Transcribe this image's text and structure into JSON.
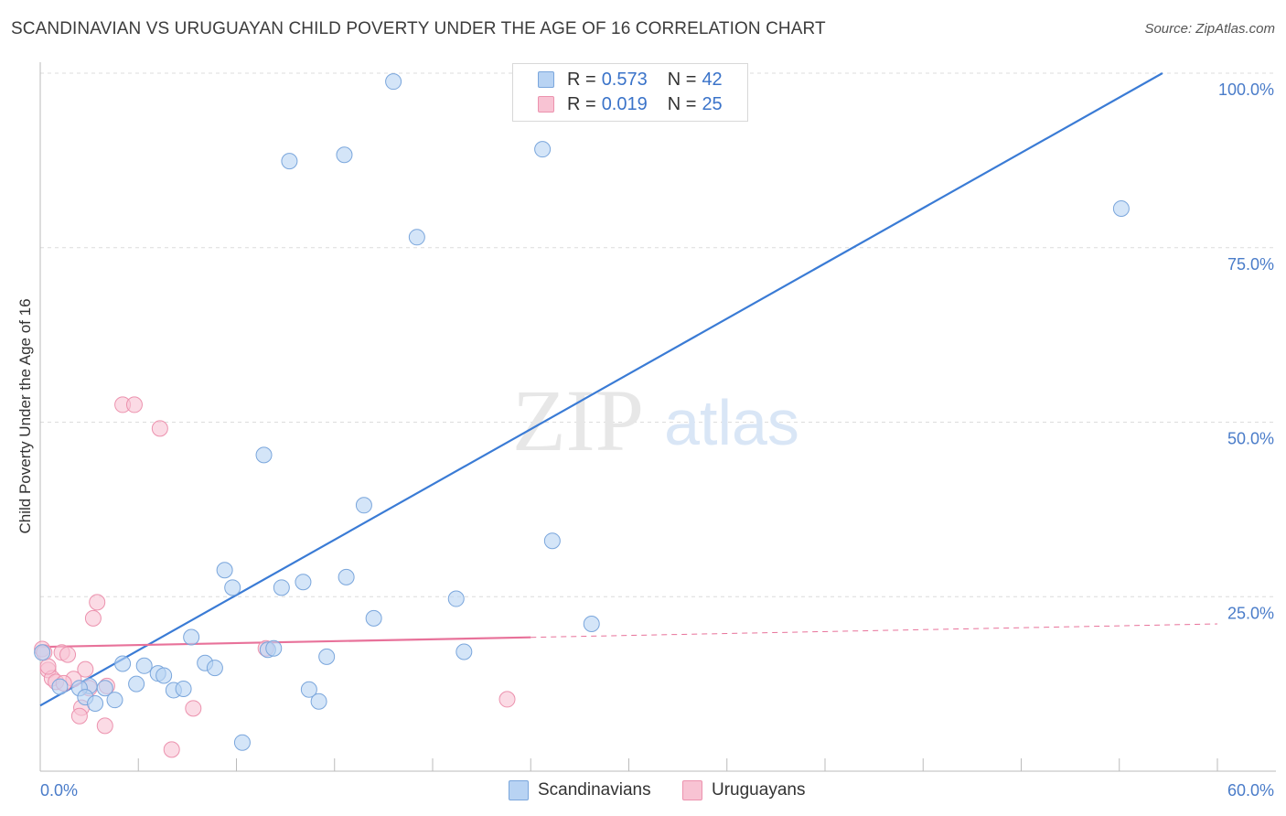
{
  "title": "SCANDINAVIAN VS URUGUAYAN CHILD POVERTY UNDER THE AGE OF 16 CORRELATION CHART",
  "source": "Source: ZipAtlas.com",
  "watermark": {
    "zip": "ZIP",
    "atlas": "atlas"
  },
  "legend": {
    "rows": [
      {
        "r_label": "R = ",
        "r_value": "0.573",
        "n_label": "N = ",
        "n_value": "42"
      },
      {
        "r_label": "R = ",
        "r_value": "0.019",
        "n_label": "N = ",
        "n_value": "25"
      }
    ]
  },
  "bottom_legend": [
    "Scandinavians",
    "Uruguayans"
  ],
  "colors": {
    "blue_fill": "#b8d3f3",
    "blue_stroke": "#7aa6dc",
    "blue_line": "#3a7bd5",
    "pink_fill": "#f8c3d3",
    "pink_stroke": "#ec92ae",
    "pink_line": "#e8729a",
    "tick_label": "#4a7cc9",
    "grid": "#dcdcdc"
  },
  "chart_data": {
    "type": "scatter",
    "title": "SCANDINAVIAN VS URUGUAYAN CHILD POVERTY UNDER THE AGE OF 16 CORRELATION CHART",
    "xlabel": "",
    "ylabel": "Child Poverty Under the Age of 16",
    "xlim": [
      0,
      60
    ],
    "ylim": [
      0,
      100
    ],
    "x_tick_labels": [
      "0.0%",
      "60.0%"
    ],
    "y_ticks": [
      25,
      50,
      75,
      100
    ],
    "y_tick_labels": [
      "25.0%",
      "50.0%",
      "75.0%",
      "100.0%"
    ],
    "grid": true,
    "legend_position": "top-center",
    "series": [
      {
        "name": "Scandinavians",
        "r": 0.573,
        "n": 42,
        "points": [
          [
            18.0,
            98.8
          ],
          [
            12.7,
            87.4
          ],
          [
            15.5,
            88.3
          ],
          [
            25.6,
            89.1
          ],
          [
            19.2,
            76.5
          ],
          [
            55.1,
            80.6
          ],
          [
            11.4,
            45.3
          ],
          [
            16.5,
            38.1
          ],
          [
            26.1,
            33.0
          ],
          [
            9.4,
            28.8
          ],
          [
            9.8,
            26.3
          ],
          [
            12.3,
            26.3
          ],
          [
            13.4,
            27.1
          ],
          [
            15.6,
            27.8
          ],
          [
            21.2,
            24.7
          ],
          [
            17.0,
            21.9
          ],
          [
            28.1,
            21.1
          ],
          [
            7.7,
            19.2
          ],
          [
            11.6,
            17.4
          ],
          [
            11.9,
            17.6
          ],
          [
            14.6,
            16.4
          ],
          [
            21.6,
            17.1
          ],
          [
            4.2,
            15.4
          ],
          [
            5.3,
            15.1
          ],
          [
            8.4,
            15.5
          ],
          [
            8.9,
            14.8
          ],
          [
            6.0,
            14.0
          ],
          [
            6.3,
            13.7
          ],
          [
            4.9,
            12.5
          ],
          [
            2.5,
            12.2
          ],
          [
            1.0,
            12.1
          ],
          [
            2.0,
            11.9
          ],
          [
            3.3,
            11.9
          ],
          [
            6.8,
            11.6
          ],
          [
            7.3,
            11.8
          ],
          [
            13.7,
            11.7
          ],
          [
            2.3,
            10.6
          ],
          [
            3.8,
            10.2
          ],
          [
            14.2,
            10.0
          ],
          [
            2.8,
            9.7
          ],
          [
            10.3,
            4.1
          ],
          [
            0.1,
            17.0
          ]
        ],
        "trend": {
          "x": [
            0,
            57.2
          ],
          "y": [
            9.4,
            100
          ]
        }
      },
      {
        "name": "Uruguayans",
        "r": 0.019,
        "n": 25,
        "points": [
          [
            4.2,
            52.5
          ],
          [
            4.8,
            52.5
          ],
          [
            6.1,
            49.1
          ],
          [
            2.9,
            24.2
          ],
          [
            2.7,
            21.9
          ],
          [
            11.5,
            17.6
          ],
          [
            0.1,
            17.5
          ],
          [
            1.1,
            17.0
          ],
          [
            1.4,
            16.7
          ],
          [
            0.4,
            14.5
          ],
          [
            2.3,
            14.6
          ],
          [
            0.6,
            13.3
          ],
          [
            0.8,
            12.8
          ],
          [
            1.7,
            13.2
          ],
          [
            3.4,
            12.2
          ],
          [
            2.5,
            11.9
          ],
          [
            1.2,
            12.6
          ],
          [
            23.8,
            10.3
          ],
          [
            7.8,
            9.0
          ],
          [
            2.1,
            9.1
          ],
          [
            2.0,
            7.9
          ],
          [
            3.3,
            6.5
          ],
          [
            6.7,
            3.1
          ],
          [
            0.2,
            17.0
          ],
          [
            0.4,
            15.0
          ]
        ],
        "trend": {
          "x": [
            0,
            60
          ],
          "y": [
            17.8,
            21.1
          ],
          "solid_until": 25
        }
      }
    ]
  }
}
